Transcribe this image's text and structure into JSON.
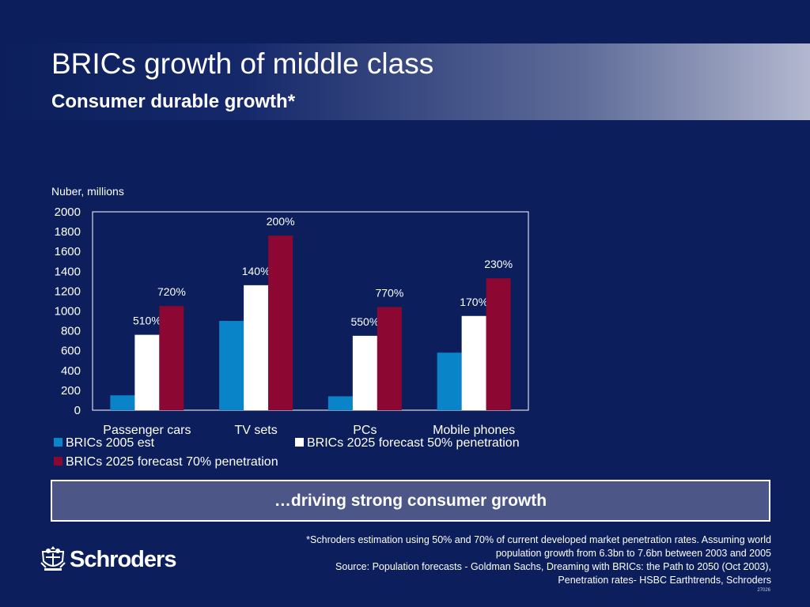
{
  "header": {
    "title": "BRICs growth of middle class",
    "subtitle": "Consumer durable growth*"
  },
  "colors": {
    "background": "#0c1f5c",
    "series_2005": "#0a84c8",
    "series_2025_50": "#ffffff",
    "series_2025_70": "#8c0732",
    "banner_fill": "#4c5687"
  },
  "chart_data": {
    "type": "bar",
    "ylabel": "Nuber, millions",
    "ylim": [
      0,
      2000
    ],
    "yticks": [
      "0",
      "200",
      "400",
      "600",
      "800",
      "1000",
      "1200",
      "1400",
      "1600",
      "1800",
      "2000"
    ],
    "categories": [
      "Passenger cars",
      "TV sets",
      "PCs",
      "Mobile phones"
    ],
    "series": [
      {
        "name": "BRICs 2005 est",
        "values": [
          150,
          900,
          140,
          580
        ],
        "labels": [
          "",
          "",
          "",
          ""
        ]
      },
      {
        "name": "BRICs 2025 forecast 50% penetration",
        "values": [
          760,
          1260,
          750,
          950
        ],
        "labels": [
          "510%",
          "140%",
          "550%",
          "170%"
        ]
      },
      {
        "name": "BRICs 2025 forecast 70% penetration",
        "values": [
          1050,
          1760,
          1040,
          1330
        ],
        "labels": [
          "720%",
          "200%",
          "770%",
          "230%"
        ]
      }
    ],
    "grid": false,
    "legend_position": "bottom"
  },
  "banner": {
    "text": "…driving strong consumer growth"
  },
  "footnote": {
    "lines": [
      "*Schroders estimation using 50% and 70% of current developed market penetration rates. Assuming world",
      "population growth from 6.3bn to 7.6bn between 2003 and 2005",
      "Source: Population forecasts - Goldman Sachs, Dreaming with BRICs: the Path to 2050 (Oct 2003),",
      "Penetration rates- HSBC Earthtrends, Schroders"
    ]
  },
  "logo": {
    "text": "Schroders",
    "icon": "crest-icon"
  },
  "doc_number": "27026"
}
